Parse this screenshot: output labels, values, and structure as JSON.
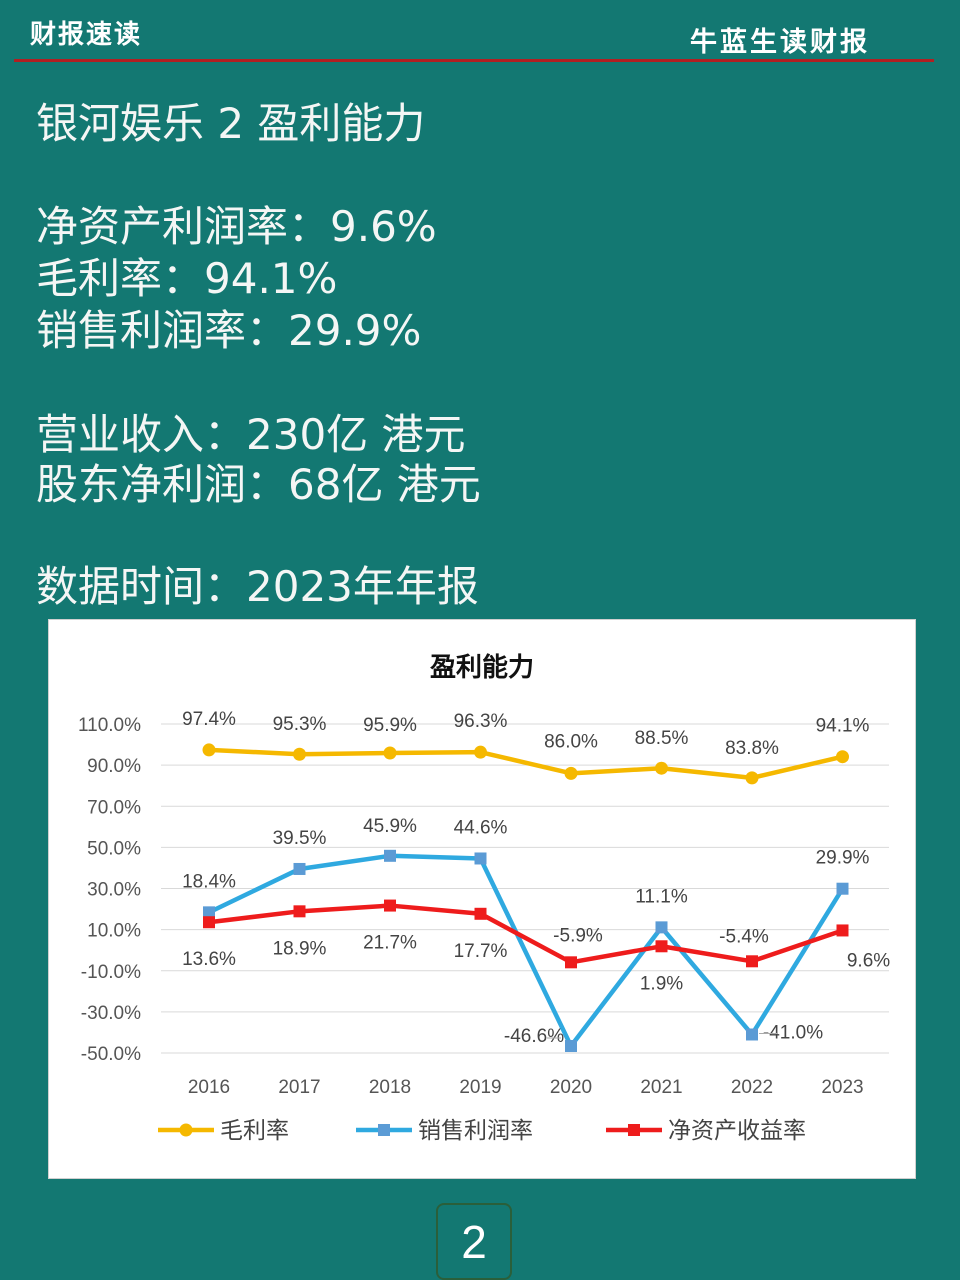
{
  "header": {
    "left": "财报速读",
    "right": "牛蓝生读财报"
  },
  "summary": {
    "title": "银河娱乐 2 盈利能力",
    "roe": "净资产利润率：9.6%",
    "gross": "毛利率：94.1%",
    "net_margin": "销售利润率：29.9%",
    "revenue": "营业收入：230亿 港元",
    "profit": "股东净利润：68亿 港元",
    "data_time": "数据时间：2023年年报"
  },
  "page_number": "2",
  "chart_data": {
    "type": "line",
    "title": "盈利能力",
    "categories": [
      "2016",
      "2017",
      "2018",
      "2019",
      "2020",
      "2021",
      "2022",
      "2023"
    ],
    "y_ticks": [
      "110.0%",
      "90.0%",
      "70.0%",
      "50.0%",
      "30.0%",
      "10.0%",
      "-10.0%",
      "-30.0%",
      "-50.0%"
    ],
    "ylim": [
      -50,
      110
    ],
    "grid": true,
    "legend_position": "bottom",
    "series": [
      {
        "name": "毛利率",
        "color": "#f5b800",
        "marker": "circle",
        "values": [
          97.4,
          95.3,
          95.9,
          96.3,
          86.0,
          88.5,
          83.8,
          94.1
        ],
        "labels": [
          "97.4%",
          "95.3%",
          "95.9%",
          "96.3%",
          "86.0%",
          "88.5%",
          "83.8%",
          "94.1%"
        ]
      },
      {
        "name": "销售利润率",
        "color": "#2fa9e0",
        "marker": "square",
        "values": [
          18.4,
          39.5,
          45.9,
          44.6,
          -46.6,
          11.1,
          -41.0,
          29.9
        ],
        "labels": [
          "18.4%",
          "39.5%",
          "45.9%",
          "44.6%",
          "-46.6%",
          "11.1%",
          "-41.0%",
          "29.9%"
        ]
      },
      {
        "name": "净资产收益率",
        "color": "#ee1c1c",
        "marker": "square",
        "values": [
          13.6,
          18.9,
          21.7,
          17.7,
          -5.9,
          1.9,
          -5.4,
          9.6
        ],
        "labels": [
          "13.6%",
          "18.9%",
          "21.7%",
          "17.7%",
          "-5.9%",
          "1.9%",
          "-5.4%",
          "9.6%"
        ]
      }
    ]
  }
}
